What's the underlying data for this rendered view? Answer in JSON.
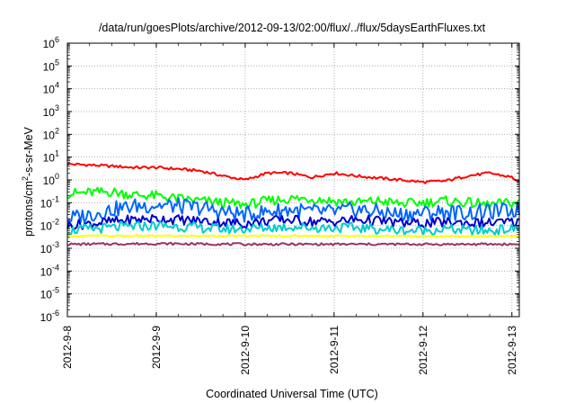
{
  "chart_data": {
    "type": "line",
    "title": "/data/run/goesPlots/archive/2012-09-13/02:00/flux/../flux/5daysEarthFluxes.txt",
    "xlabel": "Coordinated Universal Time (UTC)",
    "ylabel": "protons/cm²-s-sr-MeV",
    "ylabel_parts": {
      "base": "protons/cm",
      "sup": "2",
      "rest": "-s-sr-MeV"
    },
    "y_scale": "log",
    "ylim": [
      1e-06,
      1000000.0
    ],
    "x_unit": "day",
    "xlim": [
      "2012-09-08T00:00",
      "2012-09-13T02:00"
    ],
    "grid": true,
    "legend": "none",
    "y_ticks": [
      {
        "value": 1e-06,
        "base": "10",
        "exp": "-6"
      },
      {
        "value": 1e-05,
        "base": "10",
        "exp": "-5"
      },
      {
        "value": 0.0001,
        "base": "10",
        "exp": "-4"
      },
      {
        "value": 0.001,
        "base": "10",
        "exp": "-3"
      },
      {
        "value": 0.01,
        "base": "10",
        "exp": "-2"
      },
      {
        "value": 0.1,
        "base": "10",
        "exp": "-1"
      },
      {
        "value": 1,
        "base": "10",
        "exp": "0"
      },
      {
        "value": 10,
        "base": "10",
        "exp": "1"
      },
      {
        "value": 100,
        "base": "10",
        "exp": "2"
      },
      {
        "value": 1000,
        "base": "10",
        "exp": "3"
      },
      {
        "value": 10000,
        "base": "10",
        "exp": "4"
      },
      {
        "value": 100000,
        "base": "10",
        "exp": "5"
      },
      {
        "value": 1000000,
        "base": "10",
        "exp": "6"
      }
    ],
    "x_ticks": [
      {
        "label": "2012-9-8",
        "date": "2012-09-08"
      },
      {
        "label": "2012-9-9",
        "date": "2012-09-09"
      },
      {
        "label": "2012-9-10",
        "date": "2012-09-10"
      },
      {
        "label": "2012-9-11",
        "date": "2012-09-11"
      },
      {
        "label": "2012-9-12",
        "date": "2012-09-12"
      },
      {
        "label": "2012-9-13",
        "date": "2012-09-13"
      }
    ],
    "series": [
      {
        "color": "#ff0000",
        "x": [
          "2012-09-08T00:00",
          "2012-09-08T06:00",
          "2012-09-08T12:00",
          "2012-09-08T18:00",
          "2012-09-09T00:00",
          "2012-09-09T06:00",
          "2012-09-09T12:00",
          "2012-09-09T18:00",
          "2012-09-10T00:00",
          "2012-09-10T06:00",
          "2012-09-10T12:00",
          "2012-09-10T18:00",
          "2012-09-11T00:00",
          "2012-09-11T06:00",
          "2012-09-11T12:00",
          "2012-09-11T18:00",
          "2012-09-12T00:00",
          "2012-09-12T06:00",
          "2012-09-12T12:00",
          "2012-09-12T18:00",
          "2012-09-13T00:00",
          "2012-09-13T02:00"
        ],
        "y": [
          5.0,
          4.5,
          4.0,
          3.5,
          3.5,
          3.0,
          2.5,
          1.5,
          1.0,
          2.0,
          2.0,
          1.3,
          2.0,
          1.5,
          1.2,
          1.0,
          0.8,
          0.9,
          1.5,
          2.0,
          1.3,
          0.8
        ]
      },
      {
        "color": "#00ff00",
        "x": [
          "2012-09-08T00:00",
          "2012-09-08T06:00",
          "2012-09-08T12:00",
          "2012-09-08T18:00",
          "2012-09-09T00:00",
          "2012-09-09T06:00",
          "2012-09-09T12:00",
          "2012-09-09T18:00",
          "2012-09-10T00:00",
          "2012-09-10T06:00",
          "2012-09-10T12:00",
          "2012-09-10T18:00",
          "2012-09-11T00:00",
          "2012-09-11T06:00",
          "2012-09-11T12:00",
          "2012-09-11T18:00",
          "2012-09-12T00:00",
          "2012-09-12T06:00",
          "2012-09-12T12:00",
          "2012-09-12T18:00",
          "2012-09-13T00:00",
          "2012-09-13T02:00"
        ],
        "y": [
          0.25,
          0.28,
          0.3,
          0.22,
          0.2,
          0.15,
          0.12,
          0.1,
          0.08,
          0.12,
          0.15,
          0.15,
          0.12,
          0.1,
          0.12,
          0.09,
          0.1,
          0.12,
          0.1,
          0.08,
          0.1,
          0.1
        ]
      },
      {
        "color": "#0066ff",
        "x": [
          "2012-09-08T00:00",
          "2012-09-08T06:00",
          "2012-09-08T12:00",
          "2012-09-08T18:00",
          "2012-09-09T00:00",
          "2012-09-09T06:00",
          "2012-09-09T12:00",
          "2012-09-09T18:00",
          "2012-09-10T00:00",
          "2012-09-10T06:00",
          "2012-09-10T12:00",
          "2012-09-10T18:00",
          "2012-09-11T00:00",
          "2012-09-11T06:00",
          "2012-09-11T12:00",
          "2012-09-11T18:00",
          "2012-09-12T00:00",
          "2012-09-12T06:00",
          "2012-09-12T12:00",
          "2012-09-12T18:00",
          "2012-09-13T00:00",
          "2012-09-13T02:00"
        ],
        "y": [
          0.02,
          0.03,
          0.05,
          0.07,
          0.08,
          0.07,
          0.06,
          0.04,
          0.03,
          0.04,
          0.05,
          0.04,
          0.04,
          0.05,
          0.04,
          0.03,
          0.035,
          0.04,
          0.035,
          0.04,
          0.045,
          0.05
        ]
      },
      {
        "color": "#0000cc",
        "x": [
          "2012-09-08T00:00",
          "2012-09-08T06:00",
          "2012-09-08T12:00",
          "2012-09-08T18:00",
          "2012-09-09T00:00",
          "2012-09-09T06:00",
          "2012-09-09T12:00",
          "2012-09-09T18:00",
          "2012-09-10T00:00",
          "2012-09-10T06:00",
          "2012-09-10T12:00",
          "2012-09-10T18:00",
          "2012-09-11T00:00",
          "2012-09-11T06:00",
          "2012-09-11T12:00",
          "2012-09-11T18:00",
          "2012-09-12T00:00",
          "2012-09-12T06:00",
          "2012-09-12T12:00",
          "2012-09-12T18:00",
          "2012-09-13T00:00",
          "2012-09-13T02:00"
        ],
        "y": [
          0.01,
          0.012,
          0.015,
          0.018,
          0.02,
          0.018,
          0.016,
          0.014,
          0.012,
          0.016,
          0.018,
          0.015,
          0.015,
          0.018,
          0.016,
          0.013,
          0.012,
          0.014,
          0.013,
          0.013,
          0.014,
          0.014
        ]
      },
      {
        "color": "#00cccc",
        "x": [
          "2012-09-08T00:00",
          "2012-09-08T06:00",
          "2012-09-08T12:00",
          "2012-09-08T18:00",
          "2012-09-09T00:00",
          "2012-09-09T06:00",
          "2012-09-09T12:00",
          "2012-09-09T18:00",
          "2012-09-10T00:00",
          "2012-09-10T06:00",
          "2012-09-10T12:00",
          "2012-09-10T18:00",
          "2012-09-11T00:00",
          "2012-09-11T06:00",
          "2012-09-11T12:00",
          "2012-09-11T18:00",
          "2012-09-12T00:00",
          "2012-09-12T06:00",
          "2012-09-12T12:00",
          "2012-09-12T18:00",
          "2012-09-13T00:00",
          "2012-09-13T02:00"
        ],
        "y": [
          0.006,
          0.007,
          0.008,
          0.009,
          0.01,
          0.009,
          0.008,
          0.007,
          0.007,
          0.008,
          0.009,
          0.008,
          0.008,
          0.008,
          0.007,
          0.006,
          0.006,
          0.007,
          0.006,
          0.006,
          0.007,
          0.007
        ]
      },
      {
        "color": "#ffff00",
        "x": [
          "2012-09-08T00:00",
          "2012-09-09T00:00",
          "2012-09-10T00:00",
          "2012-09-11T00:00",
          "2012-09-12T00:00",
          "2012-09-13T00:00",
          "2012-09-13T02:00"
        ],
        "y": [
          0.0035,
          0.0035,
          0.0035,
          0.0035,
          0.0034,
          0.0034,
          0.0034
        ]
      },
      {
        "color": "#993366",
        "x": [
          "2012-09-08T00:00",
          "2012-09-09T00:00",
          "2012-09-10T00:00",
          "2012-09-11T00:00",
          "2012-09-12T00:00",
          "2012-09-13T00:00",
          "2012-09-13T02:00"
        ],
        "y": [
          0.0015,
          0.0016,
          0.0015,
          0.0015,
          0.0015,
          0.0015,
          0.0015
        ]
      }
    ]
  }
}
